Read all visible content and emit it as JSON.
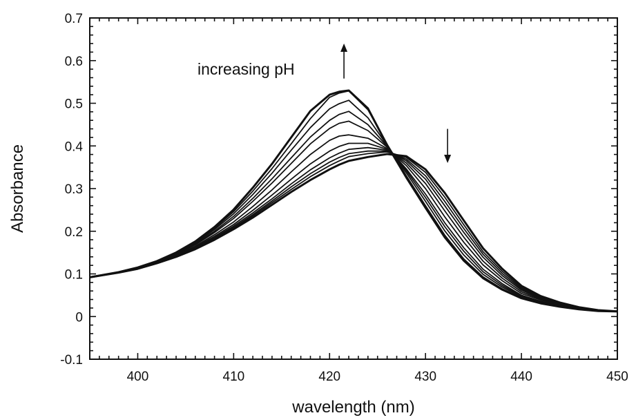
{
  "chart_data": {
    "type": "line",
    "xlabel": "wavelength (nm)",
    "ylabel": "Absorbance",
    "xlim": [
      395,
      450
    ],
    "ylim": [
      -0.1,
      0.7
    ],
    "x_ticks": [
      "400",
      "410",
      "420",
      "430",
      "440",
      "450"
    ],
    "y_ticks": [
      "-0.1",
      "0",
      "0.1",
      "0.2",
      "0.3",
      "0.4",
      "0.5",
      "0.6",
      "0.7"
    ],
    "grid": false,
    "legend": "none",
    "annotations": [
      {
        "text": "increasing pH",
        "arrow": "up",
        "x": 421.5,
        "y": 0.64
      },
      {
        "text": "",
        "arrow": "down",
        "x": 432.3,
        "y": 0.36
      }
    ],
    "x": [
      395,
      398,
      400,
      402,
      404,
      406,
      408,
      410,
      412,
      414,
      416,
      418,
      420,
      421,
      422,
      424,
      426,
      428,
      430,
      432,
      434,
      436,
      438,
      440,
      442,
      444,
      446,
      448,
      450
    ],
    "series": [
      {
        "values": [
          0.092,
          0.103,
          0.112,
          0.125,
          0.14,
          0.158,
          0.18,
          0.205,
          0.232,
          0.262,
          0.292,
          0.32,
          0.345,
          0.356,
          0.365,
          0.374,
          0.381,
          0.376,
          0.345,
          0.29,
          0.225,
          0.16,
          0.112,
          0.072,
          0.048,
          0.033,
          0.022,
          0.015,
          0.012
        ]
      },
      {
        "values": [
          0.092,
          0.103,
          0.112,
          0.125,
          0.14,
          0.159,
          0.182,
          0.207,
          0.236,
          0.267,
          0.298,
          0.328,
          0.354,
          0.365,
          0.375,
          0.382,
          0.386,
          0.373,
          0.338,
          0.28,
          0.215,
          0.152,
          0.106,
          0.068,
          0.046,
          0.032,
          0.021,
          0.015,
          0.012
        ]
      },
      {
        "values": [
          0.092,
          0.103,
          0.112,
          0.125,
          0.141,
          0.16,
          0.183,
          0.209,
          0.239,
          0.271,
          0.304,
          0.335,
          0.362,
          0.373,
          0.382,
          0.388,
          0.388,
          0.369,
          0.33,
          0.27,
          0.206,
          0.146,
          0.101,
          0.065,
          0.044,
          0.031,
          0.021,
          0.015,
          0.012
        ]
      },
      {
        "values": [
          0.092,
          0.103,
          0.112,
          0.126,
          0.142,
          0.161,
          0.185,
          0.212,
          0.243,
          0.276,
          0.311,
          0.344,
          0.372,
          0.383,
          0.392,
          0.396,
          0.39,
          0.365,
          0.322,
          0.26,
          0.197,
          0.139,
          0.096,
          0.062,
          0.043,
          0.03,
          0.02,
          0.015,
          0.012
        ]
      },
      {
        "values": [
          0.092,
          0.103,
          0.113,
          0.126,
          0.143,
          0.163,
          0.188,
          0.216,
          0.249,
          0.285,
          0.322,
          0.358,
          0.388,
          0.399,
          0.406,
          0.406,
          0.392,
          0.36,
          0.312,
          0.248,
          0.186,
          0.13,
          0.09,
          0.058,
          0.041,
          0.029,
          0.02,
          0.015,
          0.012
        ]
      },
      {
        "values": [
          0.092,
          0.103,
          0.113,
          0.127,
          0.144,
          0.165,
          0.192,
          0.222,
          0.258,
          0.297,
          0.339,
          0.38,
          0.413,
          0.423,
          0.426,
          0.418,
          0.394,
          0.354,
          0.3,
          0.234,
          0.174,
          0.121,
          0.084,
          0.054,
          0.039,
          0.028,
          0.019,
          0.014,
          0.012
        ]
      },
      {
        "values": [
          0.092,
          0.104,
          0.114,
          0.128,
          0.146,
          0.168,
          0.197,
          0.23,
          0.27,
          0.313,
          0.359,
          0.405,
          0.441,
          0.453,
          0.458,
          0.436,
          0.397,
          0.346,
          0.287,
          0.22,
          0.161,
          0.111,
          0.077,
          0.05,
          0.036,
          0.026,
          0.018,
          0.014,
          0.012
        ]
      },
      {
        "values": [
          0.092,
          0.104,
          0.114,
          0.128,
          0.147,
          0.17,
          0.2,
          0.235,
          0.277,
          0.323,
          0.372,
          0.421,
          0.46,
          0.474,
          0.481,
          0.45,
          0.399,
          0.342,
          0.279,
          0.211,
          0.153,
          0.105,
          0.073,
          0.048,
          0.035,
          0.025,
          0.018,
          0.014,
          0.012
        ]
      },
      {
        "values": [
          0.092,
          0.104,
          0.114,
          0.129,
          0.148,
          0.172,
          0.204,
          0.241,
          0.286,
          0.336,
          0.39,
          0.443,
          0.487,
          0.499,
          0.507,
          0.466,
          0.401,
          0.337,
          0.27,
          0.201,
          0.144,
          0.099,
          0.069,
          0.046,
          0.034,
          0.024,
          0.017,
          0.013,
          0.012
        ]
      },
      {
        "values": [
          0.092,
          0.104,
          0.114,
          0.129,
          0.149,
          0.174,
          0.207,
          0.246,
          0.294,
          0.347,
          0.405,
          0.464,
          0.514,
          0.524,
          0.529,
          0.485,
          0.404,
          0.33,
          0.26,
          0.191,
          0.135,
          0.093,
          0.065,
          0.044,
          0.032,
          0.023,
          0.017,
          0.013,
          0.012
        ]
      },
      {
        "values": [
          0.092,
          0.104,
          0.115,
          0.13,
          0.15,
          0.176,
          0.21,
          0.251,
          0.302,
          0.358,
          0.42,
          0.482,
          0.52,
          0.527,
          0.53,
          0.488,
          0.402,
          0.326,
          0.255,
          0.186,
          0.131,
          0.09,
          0.063,
          0.043,
          0.031,
          0.023,
          0.017,
          0.013,
          0.012
        ]
      }
    ]
  }
}
